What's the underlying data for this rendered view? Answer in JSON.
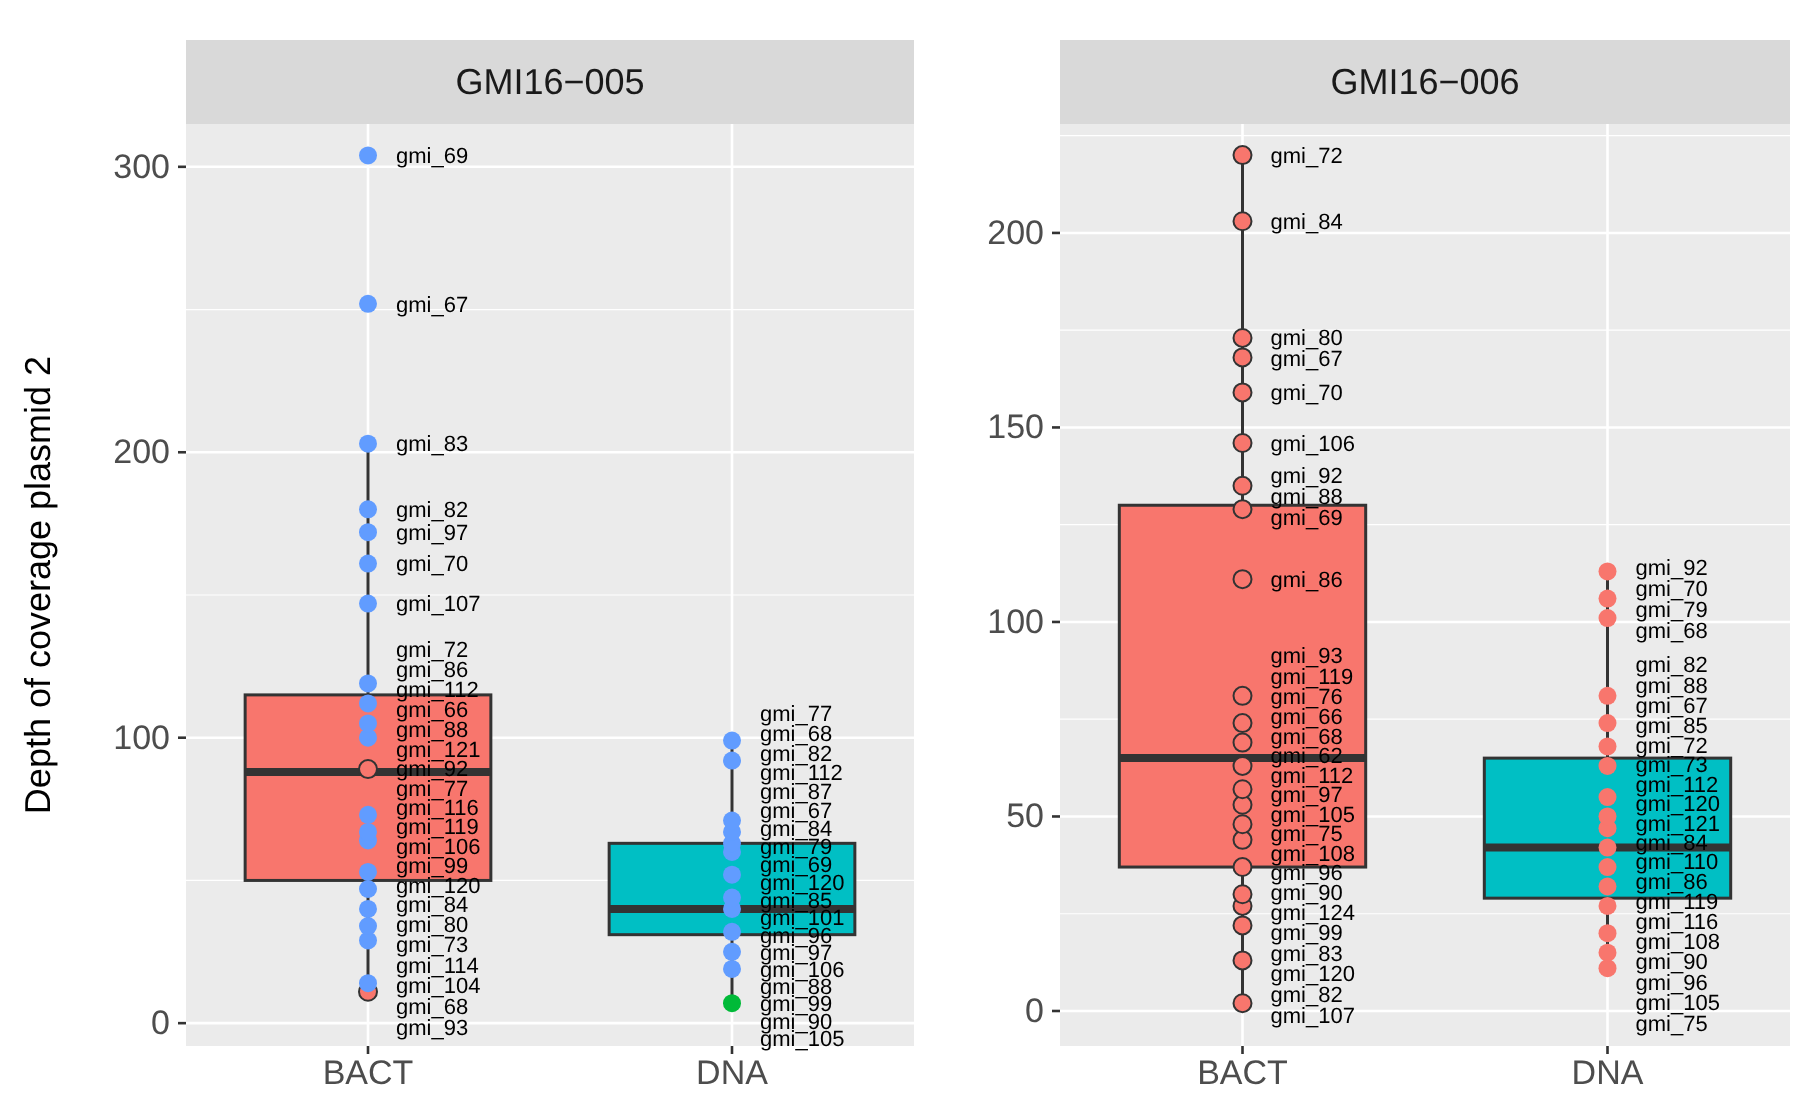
{
  "chart_data": [
    {
      "type": "box",
      "title": "GMI16−005",
      "ylabel": "Depth of coverage plasmid 2",
      "categories": [
        "BACT",
        "DNA"
      ],
      "colors": [
        "#f8766d",
        "#00bfc4"
      ],
      "ylim": [
        -8,
        315
      ],
      "yticks": [
        0,
        100,
        200,
        300
      ],
      "grid": true,
      "legend": false,
      "boxes": [
        {
          "low": 11,
          "q1": 50,
          "median": 88,
          "q3": 115,
          "high": 203
        },
        {
          "low": 7,
          "q1": 31,
          "median": 40,
          "q3": 63,
          "high": 99
        }
      ],
      "series": [
        {
          "type": "scatter",
          "x": [
            "BACT",
            "BACT",
            "BACT",
            "BACT",
            "BACT",
            "BACT",
            "BACT",
            "BACT",
            "BACT",
            "BACT",
            "BACT",
            "BACT",
            "BACT",
            "BACT",
            "BACT",
            "BACT",
            "BACT",
            "BACT",
            "BACT",
            "BACT",
            "BACT",
            "BACT"
          ],
          "values": [
            304,
            252,
            203,
            180,
            172,
            161,
            147,
            119,
            112,
            105,
            100,
            89,
            73,
            67,
            64,
            53,
            47,
            40,
            34,
            29,
            14,
            11
          ],
          "colors": [
            "#619cff",
            "#619cff",
            "#619cff",
            "#619cff",
            "#619cff",
            "#619cff",
            "#619cff",
            "#619cff",
            "#619cff",
            "#619cff",
            "#619cff",
            "#f8766d",
            "#619cff",
            "#619cff",
            "#619cff",
            "#619cff",
            "#619cff",
            "#619cff",
            "#619cff",
            "#619cff",
            "#619cff",
            "#f8766d"
          ]
        },
        {
          "type": "scatter",
          "x": [
            "DNA",
            "DNA",
            "DNA",
            "DNA",
            "DNA",
            "DNA",
            "DNA",
            "DNA",
            "DNA",
            "DNA",
            "DNA",
            "DNA",
            "DNA"
          ],
          "values": [
            99,
            92,
            71,
            67,
            63,
            60,
            52,
            44,
            40,
            32,
            25,
            19,
            7
          ],
          "colors": [
            "#619cff",
            "#619cff",
            "#619cff",
            "#619cff",
            "#619cff",
            "#619cff",
            "#619cff",
            "#619cff",
            "#619cff",
            "#619cff",
            "#619cff",
            "#619cff",
            "#00ba38"
          ]
        }
      ],
      "annotations": [
        {
          "text": "gmi_69",
          "x": "BACT",
          "y": 304
        },
        {
          "text": "gmi_67",
          "x": "BACT",
          "y": 252
        },
        {
          "text": "gmi_83",
          "x": "BACT",
          "y": 203
        },
        {
          "text": "gmi_82",
          "x": "BACT",
          "y": 180
        },
        {
          "text": "gmi_97",
          "x": "BACT",
          "y": 172
        },
        {
          "text": "gmi_70",
          "x": "BACT",
          "y": 161
        },
        {
          "text": "gmi_107",
          "x": "BACT",
          "y": 147
        },
        {
          "text": "gmi_72",
          "x": "BACT",
          "y": 119
        },
        {
          "text": "gmi_86",
          "x": "BACT",
          "y": 112
        },
        {
          "text": "gmi_112",
          "x": "BACT",
          "y": 105
        },
        {
          "text": "gmi_66",
          "x": "BACT",
          "y": 100
        },
        {
          "text": "gmi_88",
          "x": "BACT",
          "y": 97
        },
        {
          "text": "gmi_121",
          "x": "BACT",
          "y": 89
        },
        {
          "text": "gmi_92",
          "x": "BACT",
          "y": 86
        },
        {
          "text": "gmi_77",
          "x": "BACT",
          "y": 73
        },
        {
          "text": "gmi_116",
          "x": "BACT",
          "y": 70
        },
        {
          "text": "gmi_119",
          "x": "BACT",
          "y": 67
        },
        {
          "text": "gmi_106",
          "x": "BACT",
          "y": 64
        },
        {
          "text": "gmi_99",
          "x": "BACT",
          "y": 53
        },
        {
          "text": "gmi_120",
          "x": "BACT",
          "y": 50
        },
        {
          "text": "gmi_84",
          "x": "BACT",
          "y": 47
        },
        {
          "text": "gmi_80",
          "x": "BACT",
          "y": 44
        },
        {
          "text": "gmi_73",
          "x": "BACT",
          "y": 40
        },
        {
          "text": "gmi_114",
          "x": "BACT",
          "y": 34
        },
        {
          "text": "gmi_104",
          "x": "BACT",
          "y": 29
        },
        {
          "text": "gmi_68",
          "x": "BACT",
          "y": 14
        },
        {
          "text": "gmi_93",
          "x": "BACT",
          "y": 11
        },
        {
          "text": "gmi_77",
          "x": "DNA",
          "y": 99
        },
        {
          "text": "gmi_68",
          "x": "DNA",
          "y": 92
        },
        {
          "text": "gmi_82",
          "x": "DNA",
          "y": 71
        },
        {
          "text": "gmi_112",
          "x": "DNA",
          "y": 69
        },
        {
          "text": "gmi_87",
          "x": "DNA",
          "y": 67
        },
        {
          "text": "gmi_67",
          "x": "DNA",
          "y": 63
        },
        {
          "text": "gmi_84",
          "x": "DNA",
          "y": 60
        },
        {
          "text": "gmi_79",
          "x": "DNA",
          "y": 52
        },
        {
          "text": "gmi_69",
          "x": "DNA",
          "y": 49
        },
        {
          "text": "gmi_120",
          "x": "DNA",
          "y": 44
        },
        {
          "text": "gmi_85",
          "x": "DNA",
          "y": 40
        },
        {
          "text": "gmi_101",
          "x": "DNA",
          "y": 37
        },
        {
          "text": "gmi_96",
          "x": "DNA",
          "y": 34
        },
        {
          "text": "gmi_97",
          "x": "DNA",
          "y": 32
        },
        {
          "text": "gmi_106",
          "x": "DNA",
          "y": 25
        },
        {
          "text": "gmi_88",
          "x": "DNA",
          "y": 22
        },
        {
          "text": "gmi_99",
          "x": "DNA",
          "y": 19
        },
        {
          "text": "gmi_90",
          "x": "DNA",
          "y": 17
        },
        {
          "text": "gmi_105",
          "x": "DNA",
          "y": 7
        }
      ]
    },
    {
      "type": "box",
      "title": "GMI16−006",
      "categories": [
        "BACT",
        "DNA"
      ],
      "colors": [
        "#f8766d",
        "#00bfc4"
      ],
      "ylim": [
        -9,
        228
      ],
      "yticks": [
        0,
        50,
        100,
        150,
        200
      ],
      "grid": true,
      "legend": false,
      "boxes": [
        {
          "low": 2,
          "q1": 37,
          "median": 65,
          "q3": 130,
          "high": 220
        },
        {
          "low": 11,
          "q1": 29,
          "median": 42,
          "q3": 65,
          "high": 113
        }
      ],
      "series": [
        {
          "type": "scatter",
          "x": [
            "BACT",
            "BACT",
            "BACT",
            "BACT",
            "BACT",
            "BACT",
            "BACT",
            "BACT",
            "BACT",
            "BACT",
            "BACT",
            "BACT",
            "BACT",
            "BACT",
            "BACT",
            "BACT",
            "BACT",
            "BACT",
            "BACT",
            "BACT",
            "BACT",
            "BACT",
            "BACT"
          ],
          "values": [
            220,
            203,
            173,
            168,
            159,
            146,
            135,
            129,
            111,
            81,
            74,
            69,
            63,
            57,
            53,
            48,
            44,
            37,
            30,
            27,
            22,
            13,
            2
          ],
          "color": "#f8766d"
        },
        {
          "type": "scatter",
          "x": [
            "DNA",
            "DNA",
            "DNA",
            "DNA",
            "DNA",
            "DNA",
            "DNA",
            "DNA",
            "DNA",
            "DNA",
            "DNA",
            "DNA",
            "DNA",
            "DNA",
            "DNA",
            "DNA",
            "DNA"
          ],
          "values": [
            113,
            106,
            101,
            81,
            74,
            68,
            63,
            55,
            50,
            47,
            42,
            37,
            32,
            27,
            20,
            15,
            11
          ],
          "color": "#f8766d"
        }
      ],
      "annotations": [
        {
          "text": "gmi_72",
          "x": "BACT",
          "y": 220
        },
        {
          "text": "gmi_84",
          "x": "BACT",
          "y": 203
        },
        {
          "text": "gmi_80",
          "x": "BACT",
          "y": 173
        },
        {
          "text": "gmi_67",
          "x": "BACT",
          "y": 168
        },
        {
          "text": "gmi_70",
          "x": "BACT",
          "y": 159
        },
        {
          "text": "gmi_106",
          "x": "BACT",
          "y": 146
        },
        {
          "text": "gmi_92",
          "x": "BACT",
          "y": 135
        },
        {
          "text": "gmi_88",
          "x": "BACT",
          "y": 133
        },
        {
          "text": "gmi_69",
          "x": "BACT",
          "y": 129
        },
        {
          "text": "gmi_86",
          "x": "BACT",
          "y": 111
        },
        {
          "text": "gmi_93",
          "x": "BACT",
          "y": 81
        },
        {
          "text": "gmi_119",
          "x": "BACT",
          "y": 74
        },
        {
          "text": "gmi_76",
          "x": "BACT",
          "y": 69
        },
        {
          "text": "gmi_66",
          "x": "BACT",
          "y": 67
        },
        {
          "text": "gmi_68",
          "x": "BACT",
          "y": 65
        },
        {
          "text": "gmi_62",
          "x": "BACT",
          "y": 63
        },
        {
          "text": "gmi_112",
          "x": "BACT",
          "y": 57
        },
        {
          "text": "gmi_97",
          "x": "BACT",
          "y": 53
        },
        {
          "text": "gmi_105",
          "x": "BACT",
          "y": 48
        },
        {
          "text": "gmi_75",
          "x": "BACT",
          "y": 44
        },
        {
          "text": "gmi_108",
          "x": "BACT",
          "y": 43
        },
        {
          "text": "gmi_96",
          "x": "BACT",
          "y": 37
        },
        {
          "text": "gmi_90",
          "x": "BACT",
          "y": 35
        },
        {
          "text": "gmi_124",
          "x": "BACT",
          "y": 33
        },
        {
          "text": "gmi_99",
          "x": "BACT",
          "y": 30
        },
        {
          "text": "gmi_83",
          "x": "BACT",
          "y": 27
        },
        {
          "text": "gmi_120",
          "x": "BACT",
          "y": 22
        },
        {
          "text": "gmi_82",
          "x": "BACT",
          "y": 13
        },
        {
          "text": "gmi_107",
          "x": "BACT",
          "y": 2
        },
        {
          "text": "gmi_92",
          "x": "DNA",
          "y": 113
        },
        {
          "text": "gmi_70",
          "x": "DNA",
          "y": 106
        },
        {
          "text": "gmi_79",
          "x": "DNA",
          "y": 104
        },
        {
          "text": "gmi_68",
          "x": "DNA",
          "y": 101
        },
        {
          "text": "gmi_82",
          "x": "DNA",
          "y": 81
        },
        {
          "text": "gmi_88",
          "x": "DNA",
          "y": 74
        },
        {
          "text": "gmi_67",
          "x": "DNA",
          "y": 71
        },
        {
          "text": "gmi_85",
          "x": "DNA",
          "y": 68
        },
        {
          "text": "gmi_72",
          "x": "DNA",
          "y": 63
        },
        {
          "text": "gmi_73",
          "x": "DNA",
          "y": 55
        },
        {
          "text": "gmi_112",
          "x": "DNA",
          "y": 50
        },
        {
          "text": "gmi_120",
          "x": "DNA",
          "y": 47
        },
        {
          "text": "gmi_121",
          "x": "DNA",
          "y": 45
        },
        {
          "text": "gmi_84",
          "x": "DNA",
          "y": 42
        },
        {
          "text": "gmi_110",
          "x": "DNA",
          "y": 40
        },
        {
          "text": "gmi_86",
          "x": "DNA",
          "y": 37
        },
        {
          "text": "gmi_119",
          "x": "DNA",
          "y": 32
        },
        {
          "text": "gmi_116",
          "x": "DNA",
          "y": 29
        },
        {
          "text": "gmi_108",
          "x": "DNA",
          "y": 27
        },
        {
          "text": "gmi_90",
          "x": "DNA",
          "y": 20
        },
        {
          "text": "gmi_96",
          "x": "DNA",
          "y": 15
        },
        {
          "text": "gmi_105",
          "x": "DNA",
          "y": 13
        },
        {
          "text": "gmi_75",
          "x": "DNA",
          "y": 11
        }
      ]
    }
  ]
}
